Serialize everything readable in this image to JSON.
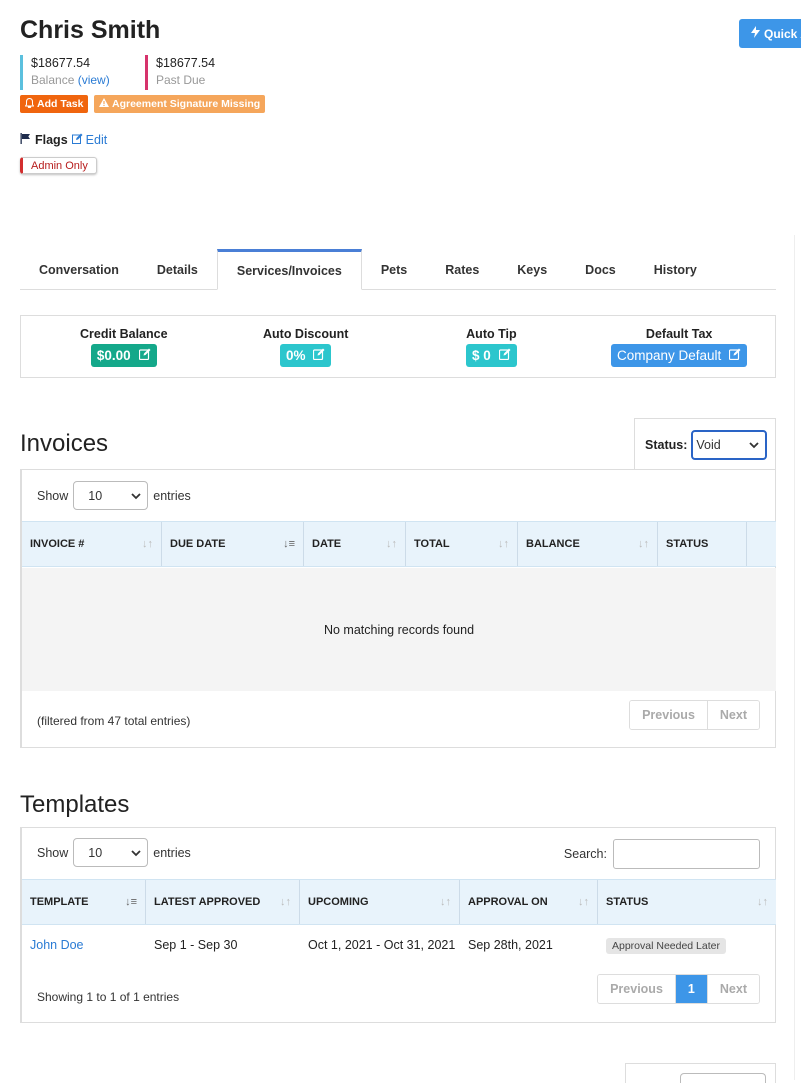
{
  "header": {
    "client_name": "Chris Smith",
    "quick_button_label": "Quick A",
    "balance_amount": "$18677.54",
    "balance_label": "Balance",
    "balance_view_link": "(view)",
    "past_due_amount": "$18677.54",
    "past_due_label": "Past Due",
    "add_task_label": "Add Task",
    "signature_missing_label": "Agreement Signature Missing",
    "flags_label": "Flags",
    "flags_edit_label": "Edit",
    "admin_only_flag": "Admin Only"
  },
  "tabs": [
    {
      "label": "Conversation",
      "active": false
    },
    {
      "label": "Details",
      "active": false
    },
    {
      "label": "Services/Invoices",
      "active": true
    },
    {
      "label": "Pets",
      "active": false
    },
    {
      "label": "Rates",
      "active": false
    },
    {
      "label": "Keys",
      "active": false
    },
    {
      "label": "Docs",
      "active": false
    },
    {
      "label": "History",
      "active": false
    }
  ],
  "summary": {
    "credit_balance": {
      "title": "Credit Balance",
      "value": "$0.00"
    },
    "auto_discount": {
      "title": "Auto Discount",
      "value": "0%"
    },
    "auto_tip": {
      "title": "Auto Tip",
      "value": "$ 0"
    },
    "default_tax": {
      "title": "Default Tax",
      "value": "Company Default"
    }
  },
  "invoices": {
    "heading": "Invoices",
    "status_label": "Status:",
    "status_value": "Void",
    "show_label": "Show",
    "entries_label": "entries",
    "page_size": "10",
    "columns": [
      "INVOICE #",
      "DUE DATE",
      "DATE",
      "TOTAL",
      "BALANCE",
      "STATUS"
    ],
    "empty_message": "No matching records found",
    "footer": "(filtered from 47 total entries)",
    "prev_label": "Previous",
    "next_label": "Next"
  },
  "templates": {
    "heading": "Templates",
    "show_label": "Show",
    "entries_label": "entries",
    "page_size": "10",
    "search_label": "Search:",
    "columns": [
      "TEMPLATE",
      "LATEST APPROVED",
      "UPCOMING",
      "APPROVAL ON",
      "STATUS"
    ],
    "rows": [
      {
        "template": "John Doe",
        "latest_approved": "Sep 1 - Sep 30",
        "upcoming": "Oct 1, 2021 - Oct 31, 2021",
        "approval_on": "Sep 28th, 2021",
        "status": "Approval Needed Later"
      }
    ],
    "footer": "Showing 1 to 1 of 1 entries",
    "prev_label": "Previous",
    "current_page": "1",
    "next_label": "Next"
  },
  "colors": {
    "primary_blue": "#3d96e8",
    "credit_green": "#14a88a",
    "teal": "#2cc6cd",
    "add_task_orange": "#f0650e",
    "warning_orange": "#f5a65b",
    "balance_accent": "#5bc0de",
    "past_due_accent": "#d6336c",
    "table_header_bg": "#e8f3fb"
  }
}
